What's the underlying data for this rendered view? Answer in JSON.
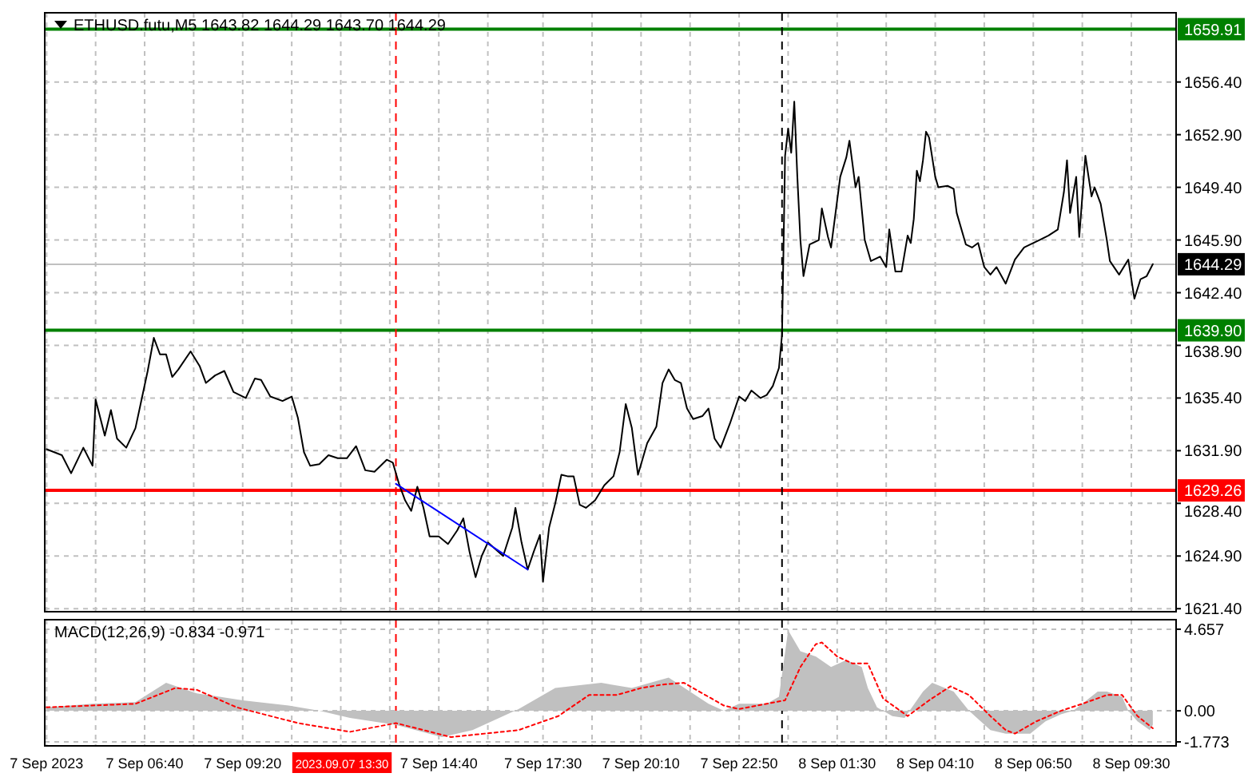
{
  "chart_data": [
    {
      "type": "line",
      "title": "ETHUSD.futu,M5  1643.82 1644.29 1643.70 1644.29",
      "tick_labels": "y",
      "grid": true,
      "xlim": [
        "2023-09-07T03:57",
        "2023-09-08T10:43"
      ],
      "ylim": [
        1621.2,
        1661.0
      ],
      "xticks": [
        {
          "value": "2023-09-07T04:00",
          "label": null
        },
        {
          "value": "2023-09-07T05:20",
          "label": null
        },
        {
          "value": "2023-09-07T06:40",
          "label": null
        },
        {
          "value": "2023-09-07T08:00",
          "label": null
        },
        {
          "value": "2023-09-07T09:20",
          "label": null
        },
        {
          "value": "2023-09-07T10:40",
          "label": null
        },
        {
          "value": "2023-09-07T12:00",
          "label": null
        },
        {
          "value": "2023-09-07T13:20",
          "label": null
        },
        {
          "value": "2023-09-07T14:40",
          "label": null
        },
        {
          "value": "2023-09-07T16:00",
          "label": null
        },
        {
          "value": "2023-09-07T17:30",
          "label": null
        },
        {
          "value": "2023-09-07T18:50",
          "label": null
        },
        {
          "value": "2023-09-07T20:10",
          "label": null
        },
        {
          "value": "2023-09-07T21:30",
          "label": null
        },
        {
          "value": "2023-09-07T22:50",
          "label": null
        },
        {
          "value": "2023-09-08T00:10",
          "label": null
        },
        {
          "value": "2023-09-08T01:30",
          "label": null
        },
        {
          "value": "2023-09-08T02:50",
          "label": null
        },
        {
          "value": "2023-09-08T04:10",
          "label": null
        },
        {
          "value": "2023-09-08T05:30",
          "label": null
        },
        {
          "value": "2023-09-08T06:50",
          "label": null
        },
        {
          "value": "2023-09-08T08:10",
          "label": null
        },
        {
          "value": "2023-09-08T09:30",
          "label": null
        }
      ],
      "yticks": [
        {
          "value": 1621.4,
          "label": "1621.40"
        },
        {
          "value": 1624.9,
          "label": "1624.90"
        },
        {
          "value": 1628.4,
          "label": "1628.40"
        },
        {
          "value": 1631.9,
          "label": "1631.90"
        },
        {
          "value": 1635.4,
          "label": "1635.40"
        },
        {
          "value": 1638.9,
          "label": "1638.90"
        },
        {
          "value": 1642.4,
          "label": "1642.40"
        },
        {
          "value": 1645.9,
          "label": "1645.90"
        },
        {
          "value": 1649.4,
          "label": "1649.40"
        },
        {
          "value": 1652.9,
          "label": "1652.90"
        },
        {
          "value": 1656.4,
          "label": "1656.40"
        }
      ],
      "ref_lines": [
        {
          "axis": "y",
          "value": 1659.91,
          "label": "1659.91",
          "color": "#008000"
        },
        {
          "axis": "y",
          "value": 1639.9,
          "label": "1639.90",
          "color": "#008000"
        },
        {
          "axis": "y",
          "value": 1629.26,
          "label": "1629.26",
          "color": "#ff0000"
        },
        {
          "axis": "y",
          "value": 1644.29,
          "label": "1644.29",
          "color": "#c0c0c0"
        },
        {
          "axis": "x",
          "value": "2023-09-07T13:30",
          "color": "#ff0000",
          "line_style": "dashed"
        },
        {
          "axis": "x",
          "value": "2023-09-08T00:00",
          "color": "#000000",
          "line_style": "dashed"
        }
      ],
      "series": [
        {
          "color": "#000000",
          "x": [
            "2023-09-07T04:00",
            "2023-09-07T04:25",
            "2023-09-07T04:40",
            "2023-09-07T05:00",
            "2023-09-07T05:15",
            "2023-09-07T05:20",
            "2023-09-07T05:35",
            "2023-09-07T05:45",
            "2023-09-07T05:55",
            "2023-09-07T06:10",
            "2023-09-07T06:25",
            "2023-09-07T06:35",
            "2023-09-07T06:45",
            "2023-09-07T06:55",
            "2023-09-07T07:05",
            "2023-09-07T07:15",
            "2023-09-07T07:25",
            "2023-09-07T07:35",
            "2023-09-07T07:55",
            "2023-09-07T08:10",
            "2023-09-07T08:20",
            "2023-09-07T08:35",
            "2023-09-07T08:50",
            "2023-09-07T09:05",
            "2023-09-07T09:25",
            "2023-09-07T09:40",
            "2023-09-07T09:50",
            "2023-09-07T10:05",
            "2023-09-07T10:25",
            "2023-09-07T10:40",
            "2023-09-07T10:50",
            "2023-09-07T11:00",
            "2023-09-07T11:10",
            "2023-09-07T11:25",
            "2023-09-07T11:40",
            "2023-09-07T11:55",
            "2023-09-07T12:10",
            "2023-09-07T12:25",
            "2023-09-07T12:40",
            "2023-09-07T12:55",
            "2023-09-07T13:15",
            "2023-09-07T13:25",
            "2023-09-07T13:35",
            "2023-09-07T13:45",
            "2023-09-07T13:55",
            "2023-09-07T14:05",
            "2023-09-07T14:15",
            "2023-09-07T14:25",
            "2023-09-07T14:40",
            "2023-09-07T14:55",
            "2023-09-07T15:10",
            "2023-09-07T15:20",
            "2023-09-07T15:30",
            "2023-09-07T15:40",
            "2023-09-07T15:50",
            "2023-09-07T16:00",
            "2023-09-07T16:25",
            "2023-09-07T16:40",
            "2023-09-07T16:45",
            "2023-09-07T16:55",
            "2023-09-07T17:05",
            "2023-09-07T17:15",
            "2023-09-07T17:25",
            "2023-09-07T17:30",
            "2023-09-07T17:40",
            "2023-09-07T17:50",
            "2023-09-07T18:00",
            "2023-09-07T18:10",
            "2023-09-07T18:20",
            "2023-09-07T18:30",
            "2023-09-07T18:40",
            "2023-09-07T18:55",
            "2023-09-07T19:10",
            "2023-09-07T19:25",
            "2023-09-07T19:35",
            "2023-09-07T19:45",
            "2023-09-07T19:55",
            "2023-09-07T20:05",
            "2023-09-07T20:20",
            "2023-09-07T20:35",
            "2023-09-07T20:45",
            "2023-09-07T20:55",
            "2023-09-07T21:05",
            "2023-09-07T21:15",
            "2023-09-07T21:25",
            "2023-09-07T21:35",
            "2023-09-07T21:50",
            "2023-09-07T22:00",
            "2023-09-07T22:10",
            "2023-09-07T22:20",
            "2023-09-07T22:35",
            "2023-09-07T22:50",
            "2023-09-07T23:00",
            "2023-09-07T23:10",
            "2023-09-07T23:25",
            "2023-09-07T23:35",
            "2023-09-07T23:45",
            "2023-09-07T23:55",
            "2023-09-08T00:00",
            "2023-09-08T00:05",
            "2023-09-08T00:10",
            "2023-09-08T00:15",
            "2023-09-08T00:20",
            "2023-09-08T00:25",
            "2023-09-08T00:30",
            "2023-09-08T00:35",
            "2023-09-08T00:45",
            "2023-09-08T01:00",
            "2023-09-08T01:05",
            "2023-09-08T01:15",
            "2023-09-08T01:20",
            "2023-09-08T01:35",
            "2023-09-08T01:45",
            "2023-09-08T01:50",
            "2023-09-08T02:00",
            "2023-09-08T02:05",
            "2023-09-08T02:15",
            "2023-09-08T02:25",
            "2023-09-08T02:40",
            "2023-09-08T02:50",
            "2023-09-08T02:55",
            "2023-09-08T03:05",
            "2023-09-08T03:15",
            "2023-09-08T03:25",
            "2023-09-08T03:30",
            "2023-09-08T03:35",
            "2023-09-08T03:40",
            "2023-09-08T03:45",
            "2023-09-08T03:50",
            "2023-09-08T03:55",
            "2023-09-08T04:00",
            "2023-09-08T04:10",
            "2023-09-08T04:15",
            "2023-09-08T04:30",
            "2023-09-08T04:40",
            "2023-09-08T04:45",
            "2023-09-08T05:00",
            "2023-09-08T05:10",
            "2023-09-08T05:20",
            "2023-09-08T05:30",
            "2023-09-08T05:40",
            "2023-09-08T05:50",
            "2023-09-08T06:05",
            "2023-09-08T06:20",
            "2023-09-08T06:35",
            "2023-09-08T06:45",
            "2023-09-08T07:00",
            "2023-09-08T07:15",
            "2023-09-08T07:30",
            "2023-09-08T07:40",
            "2023-09-08T07:45",
            "2023-09-08T07:50",
            "2023-09-08T08:00",
            "2023-09-08T08:05",
            "2023-09-08T08:15",
            "2023-09-08T08:25",
            "2023-09-08T08:30",
            "2023-09-08T08:40",
            "2023-09-08T08:50",
            "2023-09-08T08:55",
            "2023-09-08T09:10",
            "2023-09-08T09:25",
            "2023-09-08T09:35",
            "2023-09-08T09:45",
            "2023-09-08T09:55",
            "2023-09-08T10:05"
          ],
          "values": [
            1632.0,
            1631.6,
            1630.4,
            1632.1,
            1630.9,
            1635.3,
            1632.9,
            1634.6,
            1632.7,
            1632.1,
            1633.4,
            1635.3,
            1637.2,
            1639.4,
            1638.3,
            1638.3,
            1636.8,
            1637.3,
            1638.5,
            1637.5,
            1636.4,
            1636.9,
            1637.2,
            1635.8,
            1635.4,
            1636.7,
            1636.6,
            1635.5,
            1635.2,
            1635.5,
            1634.1,
            1631.8,
            1630.9,
            1631.0,
            1631.6,
            1631.4,
            1631.4,
            1632.2,
            1630.6,
            1630.5,
            1631.3,
            1631.1,
            1629.7,
            1628.6,
            1627.9,
            1629.5,
            1628.1,
            1626.2,
            1626.2,
            1625.7,
            1626.6,
            1627.4,
            1625.2,
            1623.5,
            1624.9,
            1625.8,
            1624.9,
            1626.8,
            1628.1,
            1625.8,
            1624.0,
            1625.2,
            1626.3,
            1623.2,
            1626.8,
            1628.4,
            1630.3,
            1630.2,
            1630.2,
            1628.3,
            1628.1,
            1628.6,
            1629.6,
            1630.2,
            1631.8,
            1635.0,
            1633.4,
            1630.3,
            1632.4,
            1633.5,
            1636.4,
            1637.3,
            1636.6,
            1636.4,
            1634.7,
            1634.0,
            1634.2,
            1634.7,
            1632.7,
            1632.1,
            1633.7,
            1635.5,
            1635.2,
            1635.9,
            1635.4,
            1635.6,
            1636.2,
            1637.4,
            1639.6,
            1651.5,
            1653.3,
            1651.7,
            1655.1,
            1650.1,
            1645.9,
            1643.5,
            1645.6,
            1645.9,
            1648.0,
            1646.1,
            1645.4,
            1650.1,
            1651.4,
            1652.5,
            1649.4,
            1650.1,
            1645.9,
            1644.5,
            1644.8,
            1644.1,
            1646.6,
            1643.8,
            1643.8,
            1646.2,
            1645.7,
            1647.3,
            1650.5,
            1649.8,
            1651.2,
            1653.1,
            1652.7,
            1650.1,
            1649.4,
            1649.5,
            1649.3,
            1647.7,
            1645.6,
            1645.4,
            1645.7,
            1644.1,
            1643.6,
            1644.1,
            1643.0,
            1644.6,
            1645.4,
            1645.6,
            1645.9,
            1646.2,
            1646.6,
            1649.1,
            1651.2,
            1647.7,
            1650.1,
            1646.1,
            1651.5,
            1648.8,
            1649.4,
            1648.3,
            1645.9,
            1644.5,
            1643.6,
            1644.6,
            1642.0,
            1643.3,
            1643.5,
            1644.3
          ]
        },
        {
          "color": "#0000ff",
          "x": [
            "2023-09-07T13:30",
            "2023-09-07T17:05"
          ],
          "values": [
            1629.7,
            1624.0
          ]
        }
      ]
    },
    {
      "type": "area",
      "title": "MACD(12,26,9) -0.834 -0.971",
      "grid": true,
      "xlim": [
        "2023-09-07T03:57",
        "2023-09-08T10:43"
      ],
      "ylim": [
        -2.0,
        5.2
      ],
      "xticks": [
        {
          "value": "2023-09-07T04:00",
          "label": "7 Sep 2023"
        },
        {
          "value": "2023-09-07T05:20",
          "label": null
        },
        {
          "value": "2023-09-07T06:40",
          "label": "7 Sep 06:40"
        },
        {
          "value": "2023-09-07T08:00",
          "label": null
        },
        {
          "value": "2023-09-07T09:20",
          "label": "7 Sep 09:20"
        },
        {
          "value": "2023-09-07T10:40",
          "label": null
        },
        {
          "value": "2023-09-07T12:00",
          "label": null
        },
        {
          "value": "2023-09-07T13:20",
          "label": null
        },
        {
          "value": "2023-09-07T14:40",
          "label": "7 Sep 14:40"
        },
        {
          "value": "2023-09-07T16:00",
          "label": null
        },
        {
          "value": "2023-09-07T17:30",
          "label": "7 Sep 17:30"
        },
        {
          "value": "2023-09-07T18:50",
          "label": null
        },
        {
          "value": "2023-09-07T20:10",
          "label": "7 Sep 20:10"
        },
        {
          "value": "2023-09-07T21:30",
          "label": null
        },
        {
          "value": "2023-09-07T22:50",
          "label": "7 Sep 22:50"
        },
        {
          "value": "2023-09-08T00:10",
          "label": null
        },
        {
          "value": "2023-09-08T01:30",
          "label": "8 Sep 01:30"
        },
        {
          "value": "2023-09-08T02:50",
          "label": null
        },
        {
          "value": "2023-09-08T04:10",
          "label": "8 Sep 04:10"
        },
        {
          "value": "2023-09-08T05:30",
          "label": null
        },
        {
          "value": "2023-09-08T06:50",
          "label": "8 Sep 06:50"
        },
        {
          "value": "2023-09-08T08:10",
          "label": null
        },
        {
          "value": "2023-09-08T09:30",
          "label": "8 Sep 09:30"
        }
      ],
      "yticks": [
        {
          "value": -1.773,
          "label": "-1.773"
        },
        {
          "value": 0,
          "label": "0.00"
        },
        {
          "value": 4.657,
          "label": "4.657"
        }
      ],
      "ref_lines": [
        {
          "axis": "x",
          "value": "2023-09-07T13:30",
          "label": "2023.09.07 13:30",
          "color": "#ff0000",
          "line_style": "dashed"
        },
        {
          "axis": "x",
          "value": "2023-09-08T00:00",
          "color": "#000000",
          "line_style": "dashed"
        }
      ],
      "series": [
        {
          "color": "#c0c0c0",
          "x": [
            "2023-09-07T04:00",
            "2023-09-07T05:15",
            "2023-09-07T06:25",
            "2023-09-07T07:15",
            "2023-09-07T08:05",
            "2023-09-07T09:20",
            "2023-09-07T10:35",
            "2023-09-07T11:25",
            "2023-09-07T12:15",
            "2023-09-07T13:30",
            "2023-09-07T14:45",
            "2023-09-07T15:35",
            "2023-09-07T16:50",
            "2023-09-07T17:50",
            "2023-09-07T19:05",
            "2023-09-07T19:55",
            "2023-09-07T20:55",
            "2023-09-07T22:00",
            "2023-09-07T22:25",
            "2023-09-07T22:50",
            "2023-09-07T23:35",
            "2023-09-07T23:55",
            "2023-09-08T00:10",
            "2023-09-08T00:30",
            "2023-09-08T00:55",
            "2023-09-08T01:20",
            "2023-09-08T01:45",
            "2023-09-08T02:10",
            "2023-09-08T02:20",
            "2023-09-08T02:35",
            "2023-09-08T03:00",
            "2023-09-08T03:20",
            "2023-09-08T03:50",
            "2023-09-08T04:05",
            "2023-09-08T04:40",
            "2023-09-08T05:05",
            "2023-09-08T05:40",
            "2023-09-08T06:05",
            "2023-09-08T06:45",
            "2023-09-08T07:10",
            "2023-09-08T07:35",
            "2023-09-08T07:55",
            "2023-09-08T08:10",
            "2023-09-08T08:35",
            "2023-09-08T08:50",
            "2023-09-08T09:15",
            "2023-09-08T09:25",
            "2023-09-08T09:40",
            "2023-09-08T10:00",
            "2023-09-08T10:05"
          ],
          "values": [
            0.2,
            0.4,
            0.5,
            1.6,
            1.0,
            0.6,
            0.3,
            0.0,
            -0.4,
            -0.8,
            -1.5,
            -1.1,
            0.1,
            1.3,
            1.6,
            1.3,
            1.9,
            0.4,
            0.0,
            0.4,
            0.4,
            0.8,
            4.6,
            3.4,
            3.1,
            2.5,
            2.9,
            2.5,
            1.3,
            0.2,
            -0.3,
            -0.4,
            1.1,
            1.6,
            1.1,
            0.0,
            -1.1,
            -1.3,
            -1.3,
            -0.6,
            -0.2,
            0.0,
            0.4,
            1.1,
            1.1,
            0.8,
            0.0,
            -0.6,
            -1.1,
            -0.8
          ]
        },
        {
          "type": "line",
          "color": "#ff0000",
          "line_style": "dotted",
          "x": [
            "2023-09-07T04:00",
            "2023-09-07T06:25",
            "2023-09-07T07:30",
            "2023-09-07T08:05",
            "2023-09-07T09:10",
            "2023-09-07T10:50",
            "2023-09-07T12:15",
            "2023-09-07T13:30",
            "2023-09-07T15:00",
            "2023-09-07T16:50",
            "2023-09-07T17:55",
            "2023-09-07T18:45",
            "2023-09-07T19:30",
            "2023-09-07T20:10",
            "2023-09-07T20:45",
            "2023-09-07T21:20",
            "2023-09-07T22:25",
            "2023-09-07T22:50",
            "2023-09-07T23:35",
            "2023-09-08T00:05",
            "2023-09-08T00:30",
            "2023-09-08T00:55",
            "2023-09-08T01:05",
            "2023-09-08T01:30",
            "2023-09-08T01:55",
            "2023-09-08T02:20",
            "2023-09-08T02:45",
            "2023-09-08T03:25",
            "2023-09-08T04:00",
            "2023-09-08T04:35",
            "2023-09-08T05:05",
            "2023-09-08T05:40",
            "2023-09-08T06:05",
            "2023-09-08T06:20",
            "2023-09-08T06:55",
            "2023-09-08T07:35",
            "2023-09-08T08:10",
            "2023-09-08T08:50",
            "2023-09-08T09:15",
            "2023-09-08T09:40",
            "2023-09-08T10:05"
          ],
          "values": [
            0.2,
            0.4,
            1.3,
            1.2,
            0.2,
            -0.7,
            -1.2,
            -0.7,
            -1.5,
            -1.1,
            -0.3,
            0.9,
            0.9,
            1.3,
            1.5,
            1.6,
            0.3,
            0.1,
            0.4,
            0.6,
            2.5,
            3.8,
            3.9,
            3.1,
            2.7,
            2.7,
            0.7,
            -0.3,
            0.6,
            1.4,
            0.9,
            -0.3,
            -1.1,
            -1.3,
            -0.6,
            0.0,
            0.4,
            0.9,
            0.9,
            -0.3,
            -1.0
          ]
        }
      ]
    }
  ]
}
